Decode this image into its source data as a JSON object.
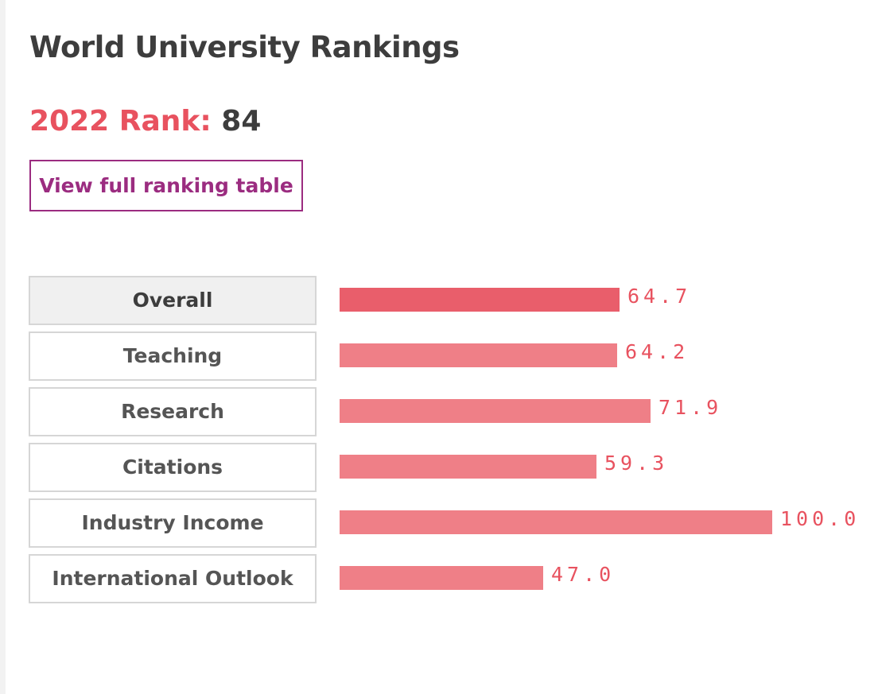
{
  "header": {
    "title": "World University Rankings"
  },
  "rank": {
    "label": "2022 Rank:",
    "value": "84"
  },
  "actions": {
    "view_table_label": "View full ranking table"
  },
  "colors": {
    "accent_red": "#e8525f",
    "bar_active": "#e95e6b",
    "bar_default": "#ef7f87",
    "button_purple": "#9b2c80"
  },
  "chart_data": {
    "type": "bar",
    "categories": [
      "Overall",
      "Teaching",
      "Research",
      "Citations",
      "Industry Income",
      "International Outlook"
    ],
    "values": [
      64.7,
      64.2,
      71.9,
      59.3,
      100.0,
      47.0
    ],
    "value_labels": [
      "64.7",
      "64.2",
      "71.9",
      "59.3",
      "100.0",
      "47.0"
    ],
    "xlim": [
      0,
      100
    ],
    "active_category": "Overall"
  }
}
